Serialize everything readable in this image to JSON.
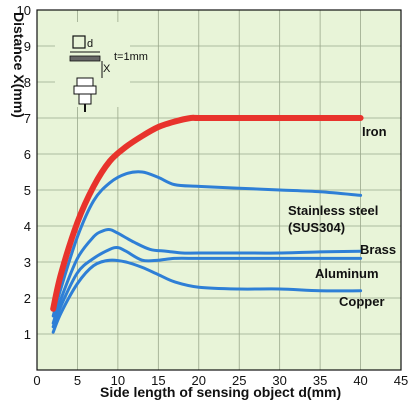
{
  "colors": {
    "plot_bg": "#e8f4d8",
    "grid": "#9aa88c",
    "iron": "#e8332c",
    "others": "#2e7fd6",
    "frame": "#111111"
  },
  "chart_data": {
    "type": "line",
    "xlabel": "Side length of sensing object d(mm)",
    "ylabel": "Distance X(mm)",
    "xlim": [
      0,
      45
    ],
    "ylim": [
      0,
      10
    ],
    "xticks": [
      "0",
      "5",
      "10",
      "15",
      "20",
      "25",
      "30",
      "35",
      "40",
      "45"
    ],
    "yticks": [
      "1",
      "2",
      "3",
      "4",
      "5",
      "6",
      "7",
      "8",
      "9",
      "10"
    ],
    "grid": true,
    "series": [
      {
        "name": "Iron",
        "x": [
          2,
          3,
          5,
          7,
          9,
          11,
          13,
          15,
          17,
          19,
          20,
          25,
          30,
          35,
          40
        ],
        "y": [
          1.7,
          2.7,
          4.1,
          5.1,
          5.8,
          6.2,
          6.5,
          6.75,
          6.9,
          7.0,
          7.0,
          7.0,
          7.0,
          7.0,
          7.0
        ]
      },
      {
        "name": "Stainless steel (SUS304)",
        "x": [
          2,
          3,
          5,
          7,
          9,
          11,
          13,
          15,
          17,
          20,
          25,
          30,
          35,
          40
        ],
        "y": [
          1.5,
          2.3,
          3.7,
          4.7,
          5.2,
          5.45,
          5.5,
          5.35,
          5.15,
          5.1,
          5.05,
          5.0,
          4.95,
          4.85
        ]
      },
      {
        "name": "Brass",
        "x": [
          2,
          3,
          5,
          7,
          8,
          9,
          10,
          12,
          14,
          16,
          18,
          20,
          25,
          30,
          35,
          40
        ],
        "y": [
          1.3,
          2.0,
          3.1,
          3.7,
          3.85,
          3.9,
          3.8,
          3.55,
          3.35,
          3.3,
          3.25,
          3.25,
          3.25,
          3.25,
          3.28,
          3.3
        ]
      },
      {
        "name": "Aluminum",
        "x": [
          2,
          3,
          5,
          7,
          9,
          10,
          11,
          13,
          15,
          17,
          20,
          25,
          30,
          35,
          40
        ],
        "y": [
          1.2,
          1.8,
          2.7,
          3.1,
          3.35,
          3.4,
          3.3,
          3.05,
          3.05,
          3.1,
          3.1,
          3.1,
          3.1,
          3.1,
          3.1
        ]
      },
      {
        "name": "Copper",
        "x": [
          2,
          3,
          5,
          7,
          9,
          11,
          13,
          15,
          17,
          20,
          25,
          30,
          35,
          40
        ],
        "y": [
          1.05,
          1.6,
          2.4,
          2.9,
          3.05,
          3.0,
          2.85,
          2.65,
          2.45,
          2.3,
          2.25,
          2.25,
          2.2,
          2.2
        ]
      }
    ],
    "labels": {
      "iron": "Iron",
      "stainless_1": "Stainless steel",
      "stainless_2": "(SUS304)",
      "brass": "Brass",
      "aluminum": "Aluminum",
      "copper": "Copper"
    },
    "inset": {
      "d_label": "d",
      "t_label": "t=1mm",
      "x_label": "X"
    }
  }
}
